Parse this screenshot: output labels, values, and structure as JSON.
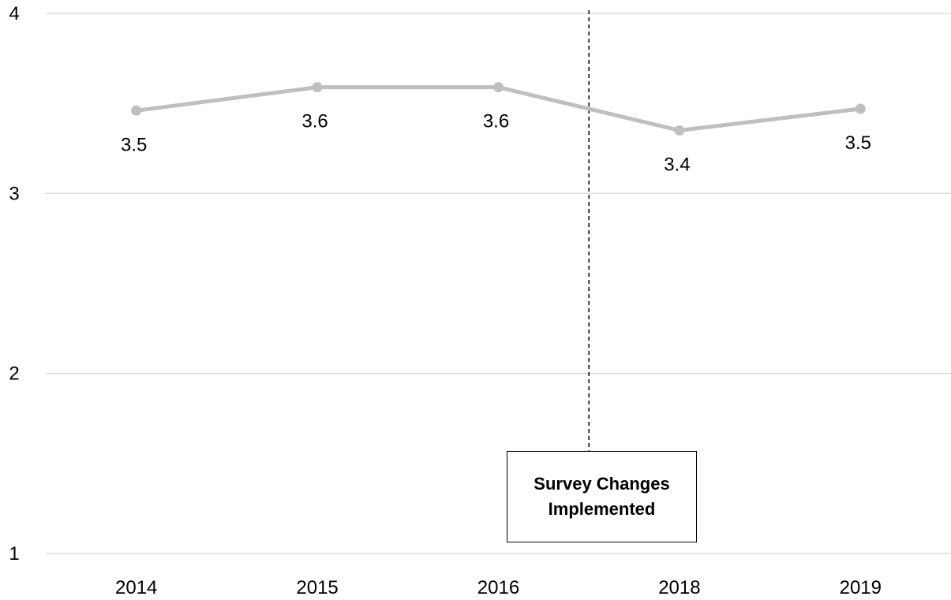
{
  "chart_data": {
    "type": "line",
    "title": "",
    "xlabel": "",
    "ylabel": "",
    "categories": [
      "2014",
      "2015",
      "2016",
      "2018",
      "2019"
    ],
    "series": [
      {
        "values": [
          3.46,
          3.59,
          3.59,
          3.35,
          3.47
        ],
        "data_labels": [
          "3.5",
          "3.6",
          "3.6",
          "3.4",
          "3.5"
        ],
        "color": "#bfbfbf"
      }
    ],
    "ylim": [
      1,
      4
    ],
    "yticks": [
      "1",
      "2",
      "3",
      "4"
    ],
    "grid": true,
    "legend": "none",
    "annotation": {
      "text": "Survey Changes Implemented",
      "between": [
        "2016",
        "2018"
      ],
      "line_style": "dashed"
    }
  },
  "colors": {
    "line": "#bfbfbf",
    "grid": "#d9d9d9",
    "text": "#000000"
  }
}
